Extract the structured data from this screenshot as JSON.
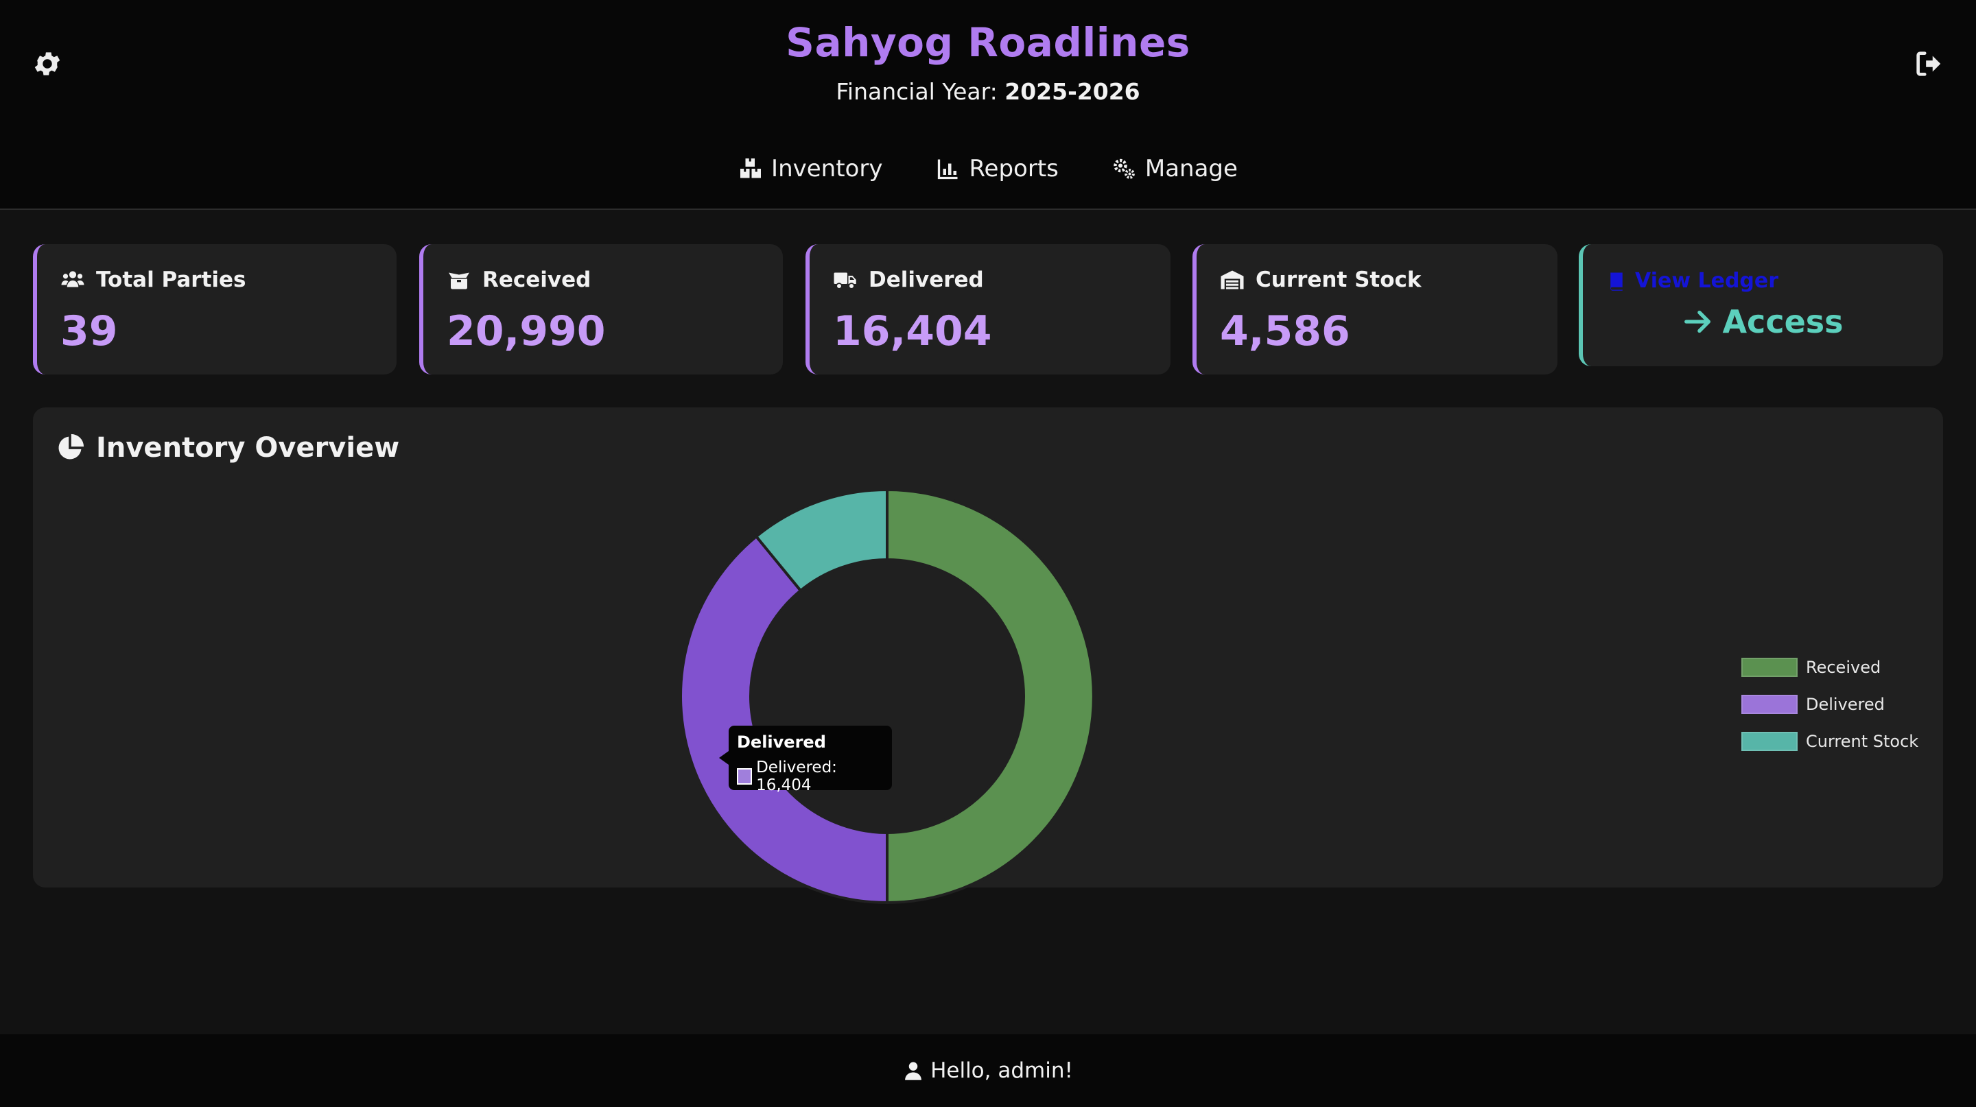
{
  "header": {
    "brand": "Sahyog Roadlines",
    "fy_label": "Financial Year:",
    "fy_value": "2025-2026",
    "settings_icon": "gear-icon",
    "logout_icon": "sign-out-icon"
  },
  "nav": [
    {
      "label": "Inventory",
      "icon": "boxes-icon"
    },
    {
      "label": "Reports",
      "icon": "bar-chart-icon"
    },
    {
      "label": "Manage",
      "icon": "gears-icon"
    }
  ],
  "cards": [
    {
      "label": "Total Parties",
      "value": "39",
      "icon": "users-icon"
    },
    {
      "label": "Received",
      "value": "20,990",
      "icon": "box-open-icon"
    },
    {
      "label": "Delivered",
      "value": "16,404",
      "icon": "truck-icon"
    },
    {
      "label": "Current Stock",
      "value": "4,586",
      "icon": "warehouse-icon"
    }
  ],
  "ledger": {
    "link_label": "View Ledger",
    "access_label": "Access"
  },
  "overview": {
    "title": "Inventory Overview"
  },
  "chart_data": {
    "type": "pie",
    "variant": "doughnut",
    "categories": [
      "Received",
      "Delivered",
      "Current Stock"
    ],
    "values": [
      20990,
      16404,
      4586
    ],
    "colors": [
      "#5b9150",
      "#8152cf",
      "#57b5a8"
    ],
    "legend_colors": [
      "#5b9150",
      "#9b74d9",
      "#57b5a8"
    ],
    "legend": "right",
    "tooltip": {
      "title": "Delivered",
      "text": "Delivered: 16,404"
    }
  },
  "footer": {
    "greeting": "Hello, admin!"
  },
  "colors": {
    "accent": "#b07cf0",
    "accent_value": "#c79bf7",
    "teal": "#5cd0bd",
    "link_blue": "#1414d6",
    "card_bg": "#202020",
    "page_bg": "#121212"
  }
}
